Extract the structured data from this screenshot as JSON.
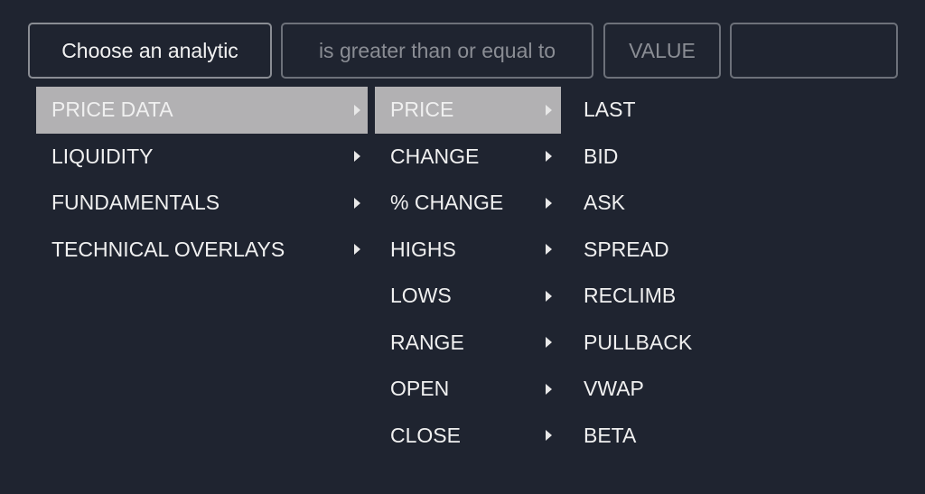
{
  "filter_bar": {
    "analytic": "Choose an analytic",
    "operator": "is greater than or equal to",
    "value_label": "VALUE",
    "value_input": ""
  },
  "menu": {
    "level1": [
      {
        "label": "PRICE DATA",
        "selected": true
      },
      {
        "label": "LIQUIDITY"
      },
      {
        "label": "FUNDAMENTALS"
      },
      {
        "label": "TECHNICAL OVERLAYS"
      }
    ],
    "level2": [
      {
        "label": "PRICE",
        "selected": true
      },
      {
        "label": "CHANGE"
      },
      {
        "label": "% CHANGE"
      },
      {
        "label": "HIGHS"
      },
      {
        "label": "LOWS"
      },
      {
        "label": "RANGE"
      },
      {
        "label": "OPEN"
      },
      {
        "label": "CLOSE"
      }
    ],
    "level3": [
      {
        "label": "LAST"
      },
      {
        "label": "BID"
      },
      {
        "label": "ASK"
      },
      {
        "label": "SPREAD"
      },
      {
        "label": "RECLIMB"
      },
      {
        "label": "PULLBACK"
      },
      {
        "label": "VWAP"
      },
      {
        "label": "BETA"
      }
    ]
  },
  "colors": {
    "background": "#1f2430",
    "selected": "#b2b1b3",
    "text": "#f0f0f0",
    "muted": "#8a8d94"
  }
}
